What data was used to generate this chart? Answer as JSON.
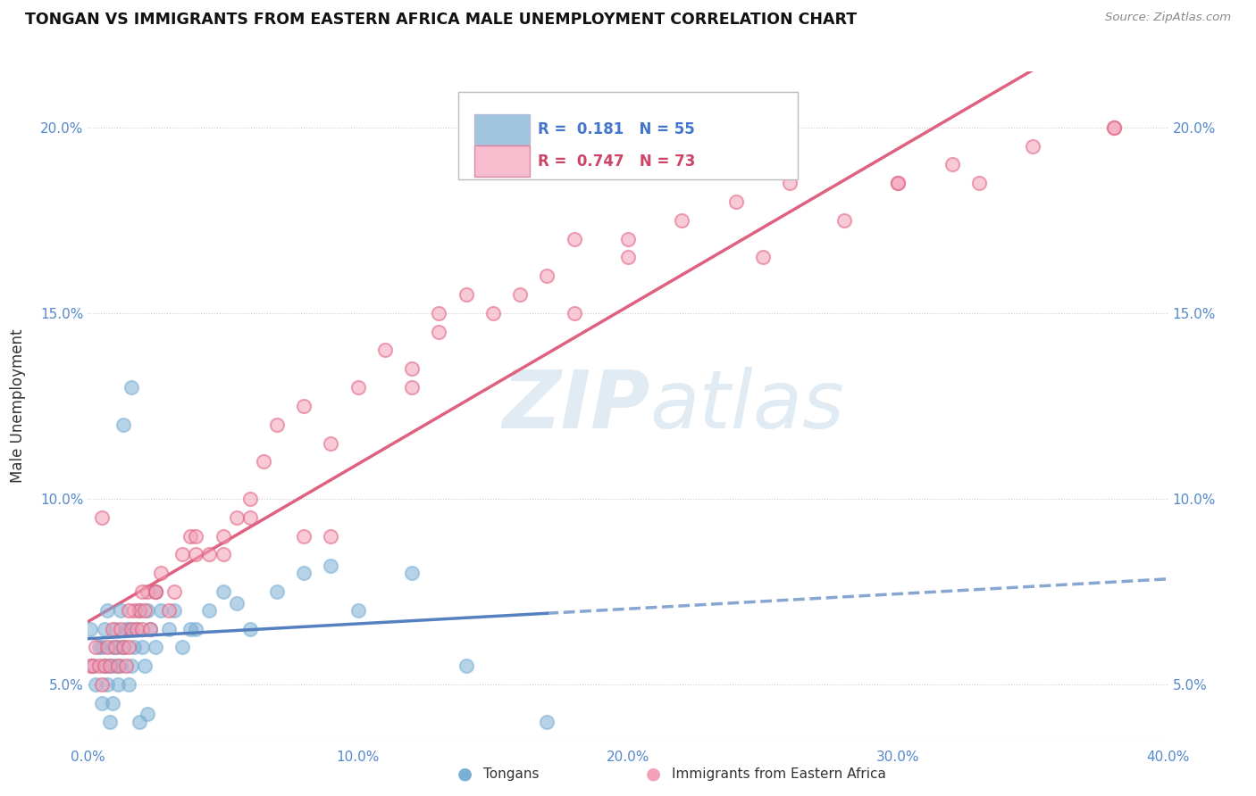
{
  "title": "TONGAN VS IMMIGRANTS FROM EASTERN AFRICA MALE UNEMPLOYMENT CORRELATION CHART",
  "source": "Source: ZipAtlas.com",
  "ylabel": "Male Unemployment",
  "legend_label1": "Tongans",
  "legend_label2": "Immigrants from Eastern Africa",
  "r1": 0.181,
  "n1": 55,
  "r2": 0.747,
  "n2": 73,
  "color1": "#7BAFD4",
  "color2": "#F4A0B8",
  "line1_color": "#5580C0",
  "line2_color": "#E06080",
  "xlim_min": 0.0,
  "xlim_max": 0.4,
  "ylim_min": 0.035,
  "ylim_max": 0.215,
  "xtick_vals": [
    0.0,
    0.1,
    0.2,
    0.3,
    0.4
  ],
  "ytick_vals": [
    0.05,
    0.1,
    0.15,
    0.2
  ],
  "tongans_x": [
    0.001,
    0.002,
    0.003,
    0.004,
    0.005,
    0.005,
    0.006,
    0.006,
    0.007,
    0.007,
    0.008,
    0.008,
    0.009,
    0.009,
    0.01,
    0.01,
    0.011,
    0.011,
    0.012,
    0.012,
    0.013,
    0.014,
    0.015,
    0.015,
    0.016,
    0.017,
    0.018,
    0.019,
    0.02,
    0.021,
    0.022,
    0.023,
    0.025,
    0.025,
    0.027,
    0.03,
    0.032,
    0.035,
    0.038,
    0.04,
    0.045,
    0.05,
    0.055,
    0.06,
    0.07,
    0.08,
    0.09,
    0.1,
    0.12,
    0.013,
    0.016,
    0.019,
    0.022,
    0.14,
    0.17
  ],
  "tongans_y": [
    0.065,
    0.055,
    0.05,
    0.06,
    0.045,
    0.06,
    0.055,
    0.065,
    0.05,
    0.07,
    0.055,
    0.04,
    0.06,
    0.045,
    0.055,
    0.065,
    0.05,
    0.06,
    0.055,
    0.07,
    0.06,
    0.065,
    0.05,
    0.065,
    0.055,
    0.06,
    0.065,
    0.07,
    0.06,
    0.055,
    0.07,
    0.065,
    0.06,
    0.075,
    0.07,
    0.065,
    0.07,
    0.06,
    0.065,
    0.065,
    0.07,
    0.075,
    0.072,
    0.065,
    0.075,
    0.08,
    0.082,
    0.07,
    0.08,
    0.12,
    0.13,
    0.04,
    0.042,
    0.055,
    0.04
  ],
  "eastern_africa_x": [
    0.001,
    0.002,
    0.003,
    0.004,
    0.005,
    0.006,
    0.007,
    0.008,
    0.009,
    0.01,
    0.011,
    0.012,
    0.013,
    0.014,
    0.015,
    0.016,
    0.017,
    0.018,
    0.019,
    0.02,
    0.021,
    0.022,
    0.023,
    0.025,
    0.027,
    0.03,
    0.032,
    0.035,
    0.038,
    0.04,
    0.045,
    0.05,
    0.055,
    0.06,
    0.065,
    0.07,
    0.08,
    0.09,
    0.1,
    0.11,
    0.12,
    0.13,
    0.14,
    0.15,
    0.16,
    0.17,
    0.18,
    0.2,
    0.22,
    0.24,
    0.26,
    0.28,
    0.3,
    0.32,
    0.35,
    0.38,
    0.015,
    0.025,
    0.04,
    0.06,
    0.09,
    0.13,
    0.18,
    0.25,
    0.33,
    0.005,
    0.02,
    0.05,
    0.08,
    0.12,
    0.2,
    0.3,
    0.38
  ],
  "eastern_africa_y": [
    0.055,
    0.055,
    0.06,
    0.055,
    0.05,
    0.055,
    0.06,
    0.055,
    0.065,
    0.06,
    0.055,
    0.065,
    0.06,
    0.055,
    0.06,
    0.065,
    0.07,
    0.065,
    0.07,
    0.065,
    0.07,
    0.075,
    0.065,
    0.075,
    0.08,
    0.07,
    0.075,
    0.085,
    0.09,
    0.085,
    0.085,
    0.09,
    0.095,
    0.1,
    0.11,
    0.12,
    0.125,
    0.115,
    0.13,
    0.14,
    0.135,
    0.145,
    0.155,
    0.15,
    0.155,
    0.16,
    0.17,
    0.165,
    0.175,
    0.18,
    0.185,
    0.175,
    0.185,
    0.19,
    0.195,
    0.2,
    0.07,
    0.075,
    0.09,
    0.095,
    0.09,
    0.15,
    0.15,
    0.165,
    0.185,
    0.095,
    0.075,
    0.085,
    0.09,
    0.13,
    0.17,
    0.185,
    0.2
  ]
}
